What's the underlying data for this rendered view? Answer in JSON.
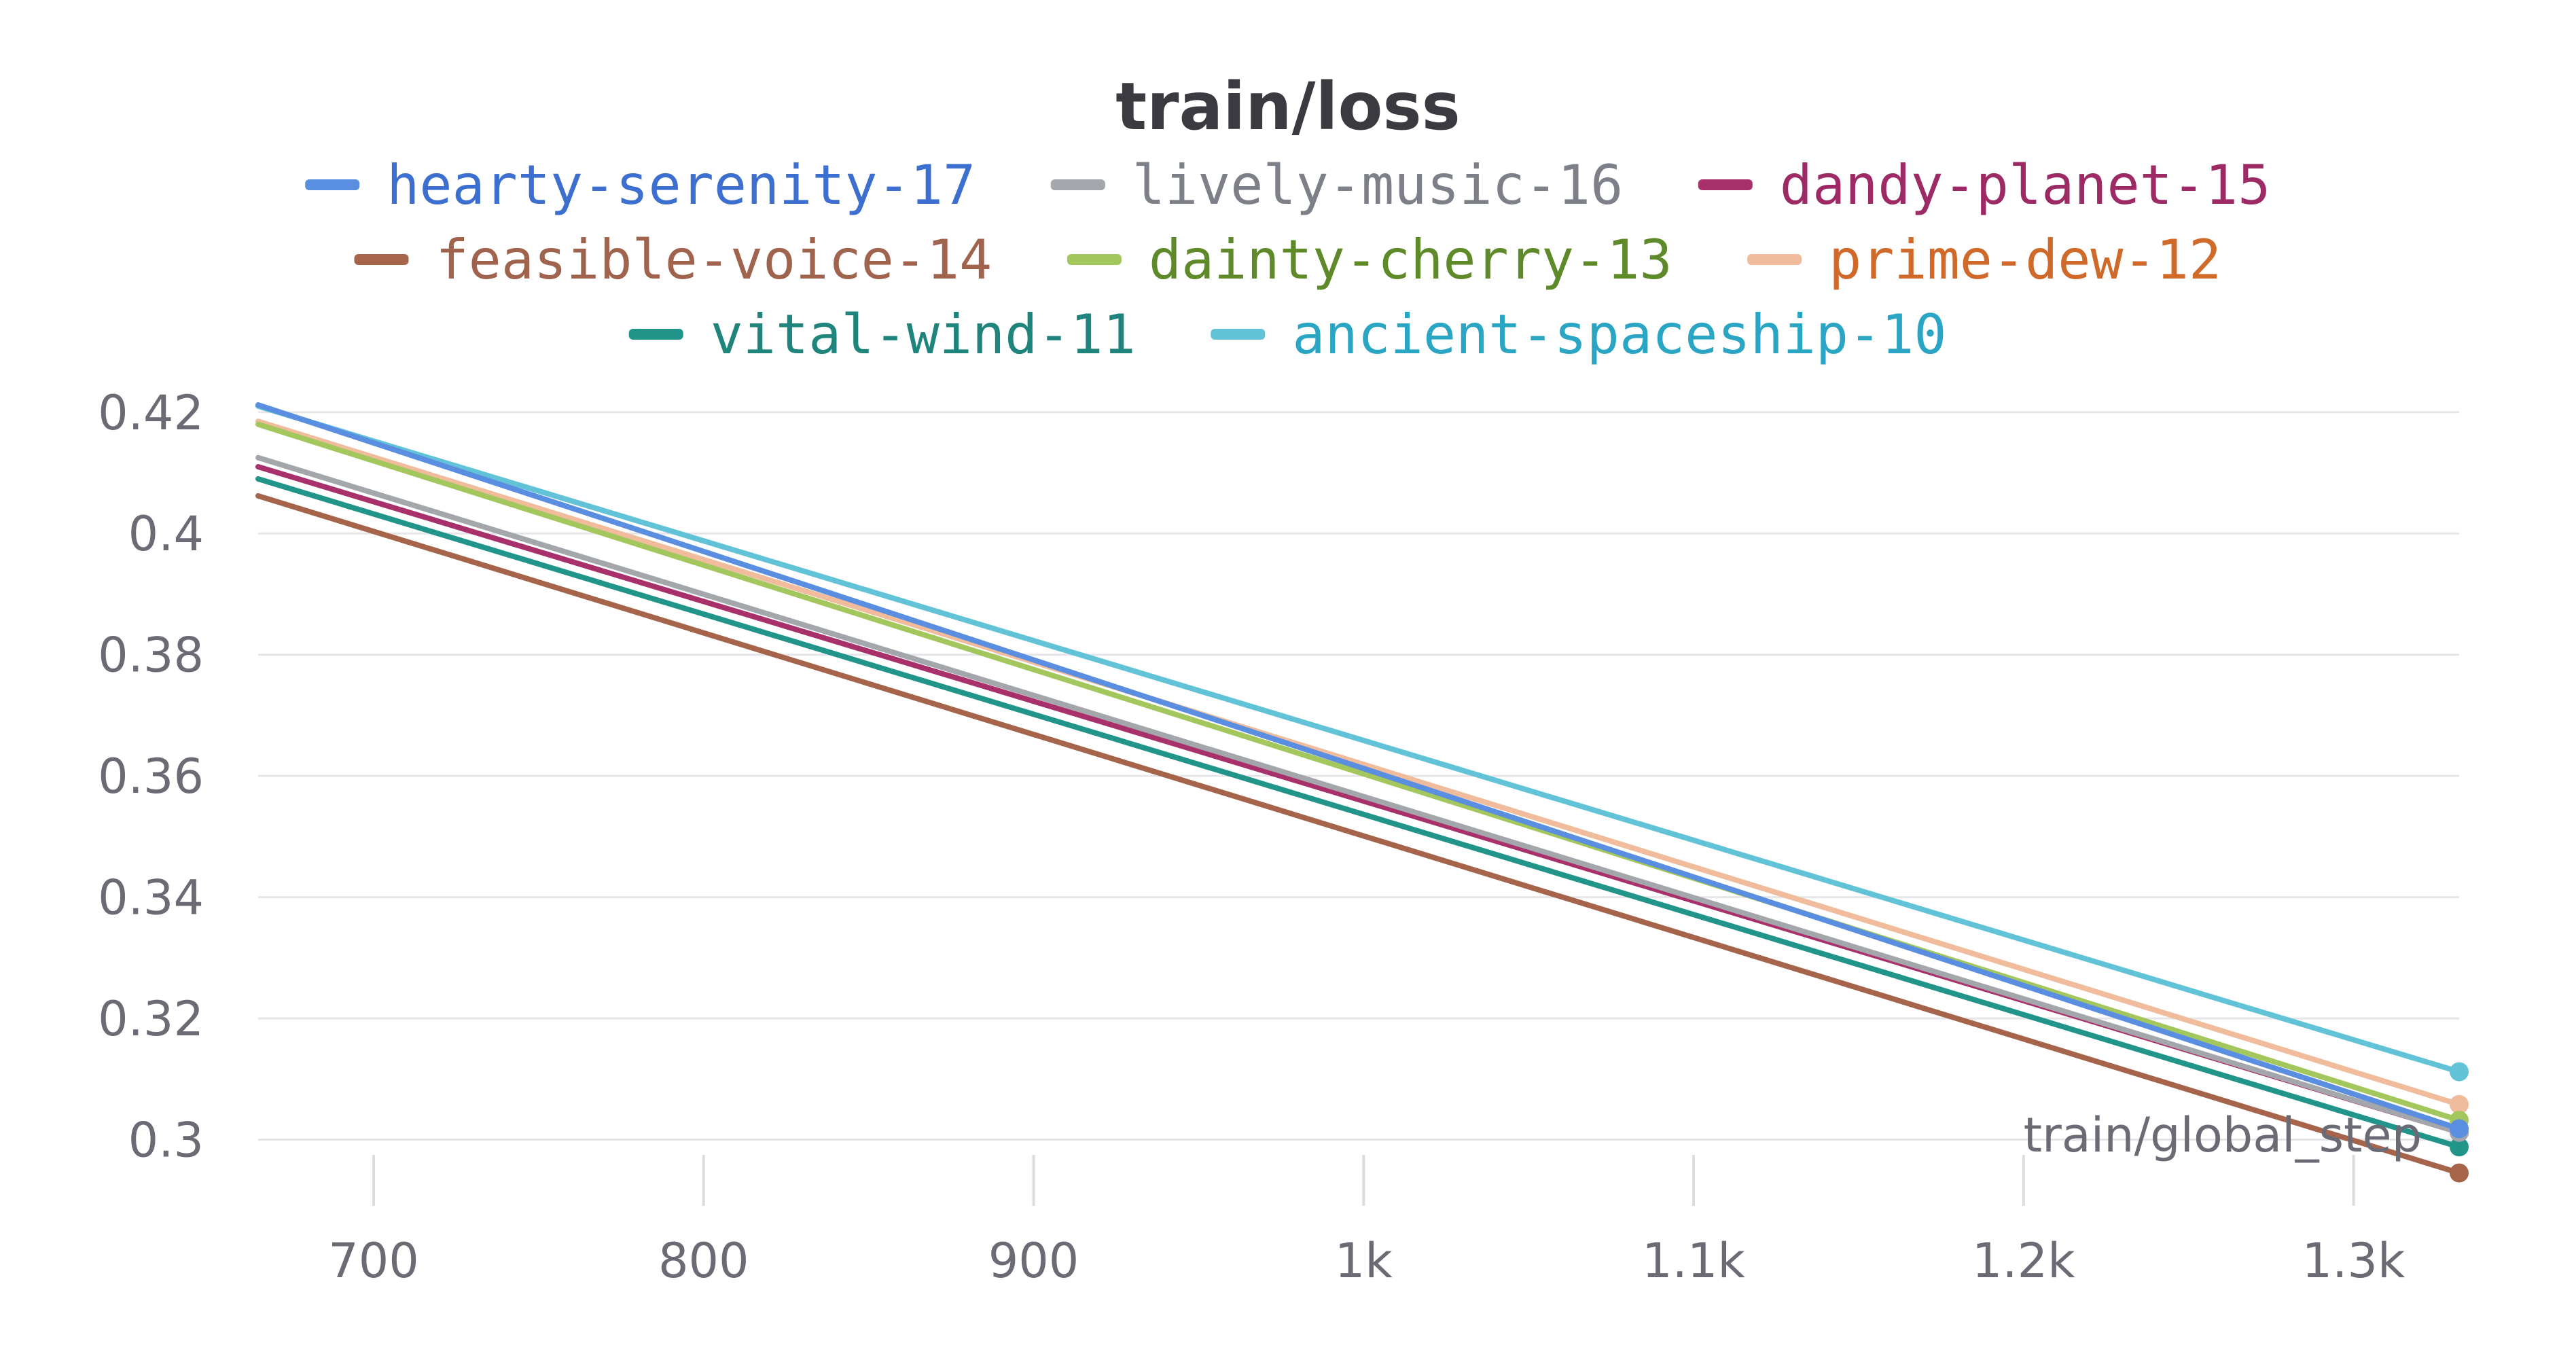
{
  "chart_data": {
    "type": "line",
    "title": "train/loss",
    "xlabel": "train/global_step",
    "ylabel": "",
    "xlim": [
      665,
      1332
    ],
    "ylim": [
      0.293,
      0.423
    ],
    "x_ticks": [
      700,
      800,
      900,
      1000,
      1100,
      1200,
      1300
    ],
    "x_tick_labels": [
      "700",
      "800",
      "900",
      "1k",
      "1.1k",
      "1.2k",
      "1.3k"
    ],
    "y_ticks": [
      0.3,
      0.32,
      0.34,
      0.36,
      0.38,
      0.4,
      0.42
    ],
    "y_tick_labels": [
      "0.3",
      "0.32",
      "0.34",
      "0.36",
      "0.38",
      "0.4",
      "0.42"
    ],
    "grid": true,
    "legend_position": "top",
    "series": [
      {
        "name": "hearty-serenity-17",
        "color": "#5a8ee0",
        "text_color": "#3d6fd0",
        "x": [
          665,
          1332
        ],
        "y": [
          0.4212,
          0.3018
        ]
      },
      {
        "name": "lively-music-16",
        "color": "#a3a6ab",
        "text_color": "#7d8088",
        "x": [
          665,
          1332
        ],
        "y": [
          0.4125,
          0.3012
        ]
      },
      {
        "name": "dandy-planet-15",
        "color": "#a8316b",
        "text_color": "#9d2a64",
        "x": [
          665,
          1332
        ],
        "y": [
          0.411,
          0.3012
        ]
      },
      {
        "name": "feasible-voice-14",
        "color": "#a6654b",
        "text_color": "#a0644e",
        "x": [
          665,
          1332
        ],
        "y": [
          0.4062,
          0.2945
        ]
      },
      {
        "name": "dainty-cherry-13",
        "color": "#a3c75c",
        "text_color": "#5f8a2a",
        "x": [
          665,
          1332
        ],
        "y": [
          0.418,
          0.3032
        ]
      },
      {
        "name": "prime-dew-12",
        "color": "#f0bc9c",
        "text_color": "#d06a2a",
        "x": [
          665,
          1332
        ],
        "y": [
          0.4185,
          0.3058
        ]
      },
      {
        "name": "vital-wind-11",
        "color": "#22958a",
        "text_color": "#1f857c",
        "x": [
          665,
          1332
        ],
        "y": [
          0.409,
          0.2988
        ]
      },
      {
        "name": "ancient-spaceship-10",
        "color": "#62c3d8",
        "text_color": "#2aa6c4",
        "x": [
          665,
          1332
        ],
        "y": [
          0.421,
          0.3112
        ]
      }
    ]
  }
}
